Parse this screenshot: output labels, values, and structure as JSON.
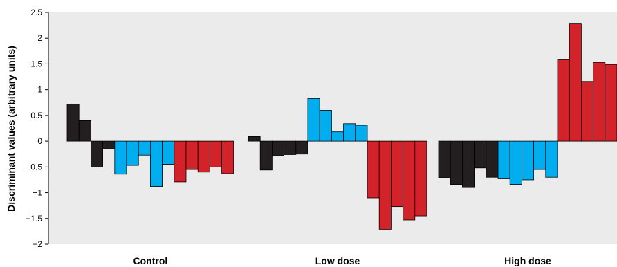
{
  "chart_data": {
    "type": "bar",
    "ylabel": "Discriminant values (arbitrary units)",
    "ylim": [
      -2,
      2.5
    ],
    "yticks": [
      "2.5",
      "2",
      "1.5",
      "1",
      "0.5",
      "0",
      "−0.5",
      "−1",
      "−1.5",
      "−2"
    ],
    "ytick_values": [
      2.5,
      2,
      1.5,
      1,
      0.5,
      0,
      -0.5,
      -1,
      -1.5,
      -2
    ],
    "grid": false,
    "background": "#ebebeb",
    "groups": [
      {
        "name": "Control",
        "series": [
          {
            "color": "#231f20",
            "values": [
              0.72,
              0.4,
              -0.5,
              -0.14
            ]
          },
          {
            "color": "#00aeef",
            "values": [
              -0.64,
              -0.47,
              -0.27,
              -0.88,
              -0.45
            ]
          },
          {
            "color": "#d2232a",
            "values": [
              -0.79,
              -0.55,
              -0.6,
              -0.5,
              -0.63
            ]
          }
        ]
      },
      {
        "name": "Low dose",
        "series": [
          {
            "color": "#231f20",
            "values": [
              0.09,
              -0.56,
              -0.28,
              -0.26,
              -0.25
            ]
          },
          {
            "color": "#00aeef",
            "values": [
              0.83,
              0.6,
              0.18,
              0.34,
              0.31
            ]
          },
          {
            "color": "#d2232a",
            "values": [
              -1.1,
              -1.71,
              -1.27,
              -1.53,
              -1.45
            ]
          }
        ]
      },
      {
        "name": "High dose",
        "series": [
          {
            "color": "#231f20",
            "values": [
              -0.71,
              -0.84,
              -0.9,
              -0.52,
              -0.7
            ]
          },
          {
            "color": "#00aeef",
            "values": [
              -0.73,
              -0.84,
              -0.75,
              -0.55,
              -0.7
            ]
          },
          {
            "color": "#d2232a",
            "values": [
              1.58,
              2.29,
              1.16,
              1.53,
              1.49
            ]
          }
        ]
      }
    ]
  }
}
